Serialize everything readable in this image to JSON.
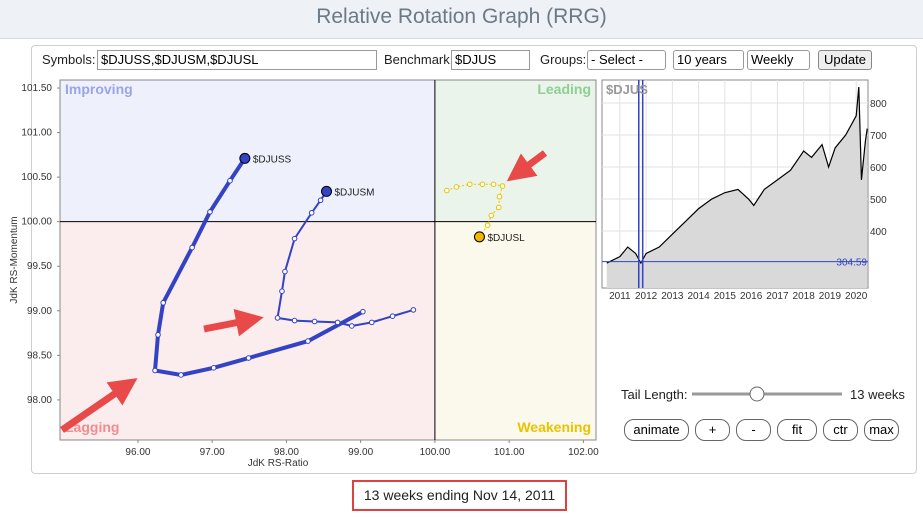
{
  "header": {
    "title": "Relative Rotation Graph (RRG)"
  },
  "controls": {
    "symbols_label": "Symbols:",
    "symbols": "$DJUSS,$DJUSM,$DJUSL",
    "benchmark_label": "Benchmark:",
    "benchmark": "$DJUS",
    "groups_label": "Groups:",
    "groups": "- Select -",
    "period": "10 years",
    "frequency": "Weekly",
    "update": "Update"
  },
  "rrg": {
    "type": "scatter",
    "xlabel": "JdK RS-Ratio",
    "ylabel": "JdK RS-Momentum",
    "quadrants": {
      "improving": "Improving",
      "leading": "Leading",
      "lagging": "Lagging",
      "weakening": "Weakening"
    },
    "center": 100,
    "xlim": [
      94.95,
      102.17
    ],
    "ylim": [
      97.55,
      101.59
    ],
    "xticks": [
      {
        "value": 96,
        "label": "96.00"
      },
      {
        "value": 97,
        "label": "97.00"
      },
      {
        "value": 98,
        "label": "98.00"
      },
      {
        "value": 99,
        "label": "99.00"
      },
      {
        "value": 100,
        "label": "100.00"
      },
      {
        "value": 101,
        "label": "101.00"
      },
      {
        "value": 102,
        "label": "102.00"
      }
    ],
    "yticks": [
      {
        "value": 98,
        "label": "98.00"
      },
      {
        "value": 98.5,
        "label": "98.50"
      },
      {
        "value": 99,
        "label": "99.00"
      },
      {
        "value": 99.5,
        "label": "99.50"
      },
      {
        "value": 100,
        "label": "100.00"
      },
      {
        "value": 100.5,
        "label": "100.50"
      },
      {
        "value": 101,
        "label": "101.00"
      },
      {
        "value": 101.5,
        "label": "101.50"
      }
    ],
    "series": [
      {
        "name": "$DJUSS",
        "color": "#3343c4",
        "head_color": "#3343c4",
        "line_width": 4,
        "x": [
          99.03,
          98.29,
          97.49,
          97.02,
          96.58,
          96.23,
          96.27,
          96.34,
          96.73,
          96.97,
          97.24,
          97.44
        ],
        "y": [
          98.99,
          98.66,
          98.47,
          98.36,
          98.28,
          98.33,
          98.73,
          99.09,
          99.71,
          100.11,
          100.46,
          100.71
        ]
      },
      {
        "name": "$DJUSM",
        "color": "#3343c4",
        "head_color": "#3343c4",
        "line_width": 2,
        "x": [
          99.71,
          99.43,
          99.15,
          98.88,
          98.69,
          98.38,
          98.11,
          97.88,
          97.94,
          97.98,
          98.11,
          98.34,
          98.46,
          98.54
        ],
        "y": [
          99.01,
          98.94,
          98.87,
          98.83,
          98.87,
          98.88,
          98.89,
          98.92,
          99.22,
          99.44,
          99.81,
          100.1,
          100.24,
          100.34
        ]
      },
      {
        "name": "$DJUSL",
        "color": "#e8c400",
        "head_color": "#f2b600",
        "line_width": 1,
        "x": [
          100.16,
          100.29,
          100.47,
          100.64,
          100.79,
          100.91,
          100.87,
          100.86,
          100.76,
          100.71,
          100.6
        ],
        "y": [
          100.35,
          100.39,
          100.42,
          100.42,
          100.42,
          100.4,
          100.28,
          100.16,
          100.07,
          99.96,
          99.83
        ]
      }
    ]
  },
  "price_chart": {
    "type": "line",
    "symbol": "$DJUS",
    "color": "#000000",
    "x": [
      2010.5,
      2011.0,
      2011.3,
      2011.6,
      2011.8,
      2012.0,
      2012.5,
      2013.0,
      2013.5,
      2014.0,
      2014.5,
      2015.0,
      2015.5,
      2015.9,
      2016.1,
      2016.5,
      2017.0,
      2017.5,
      2018.0,
      2018.3,
      2018.7,
      2018.95,
      2019.2,
      2019.6,
      2020.0,
      2020.1,
      2020.2,
      2020.35,
      2020.42
    ],
    "values": [
      300,
      320,
      350,
      330,
      300,
      330,
      350,
      390,
      430,
      470,
      500,
      520,
      530,
      500,
      480,
      530,
      560,
      590,
      650,
      630,
      670,
      600,
      660,
      700,
      760,
      850,
      560,
      680,
      720
    ],
    "xlim": [
      2010.32,
      2020.45
    ],
    "ylim": [
      222,
      872
    ],
    "xticks": [
      2011,
      2012,
      2013,
      2014,
      2015,
      2016,
      2017,
      2018,
      2019,
      2020
    ],
    "yticks": [
      400,
      500,
      600,
      700,
      800
    ],
    "reference": 304.59,
    "markers": [
      2011.72,
      2011.87
    ]
  },
  "tail": {
    "label": "Tail Length:",
    "value_label": "13 weeks"
  },
  "buttons": [
    "animate",
    "+",
    "-",
    "fit",
    "ctr",
    "max"
  ],
  "footer": "13 weeks ending Nov 14, 2011"
}
